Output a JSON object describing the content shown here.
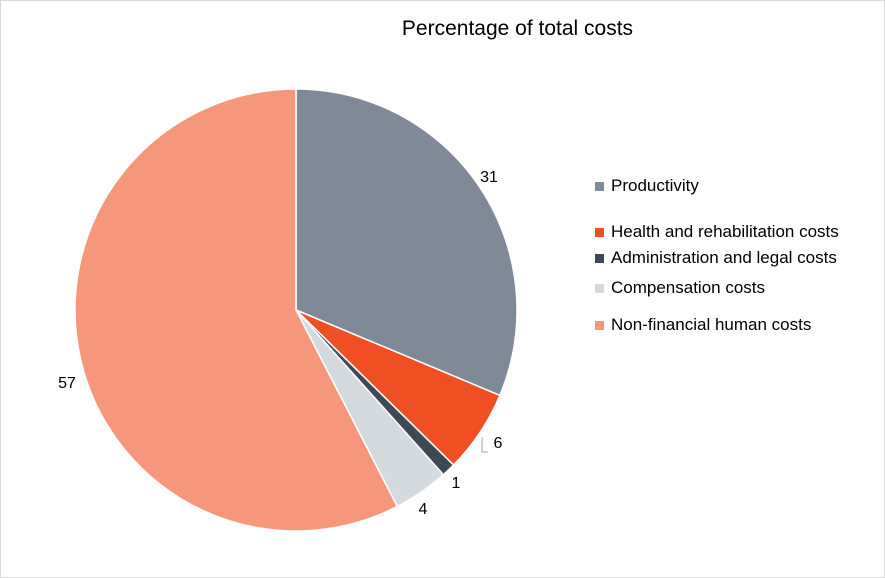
{
  "chart_data": {
    "type": "pie",
    "title": "Percentage of total costs",
    "slices": [
      {
        "label": "Productivity",
        "value": 31,
        "color": "#7f8997"
      },
      {
        "label": "Health and rehabilitation costs",
        "value": 6,
        "color": "#f04e23"
      },
      {
        "label": "Administration and legal costs",
        "value": 1,
        "color": "#3d4a56"
      },
      {
        "label": "Compensation costs",
        "value": 4,
        "color": "#d4dadd"
      },
      {
        "label": "Non-financial human costs",
        "value": 57,
        "color": "#f6977c"
      }
    ],
    "legend_position": "right",
    "data_labels": true
  }
}
